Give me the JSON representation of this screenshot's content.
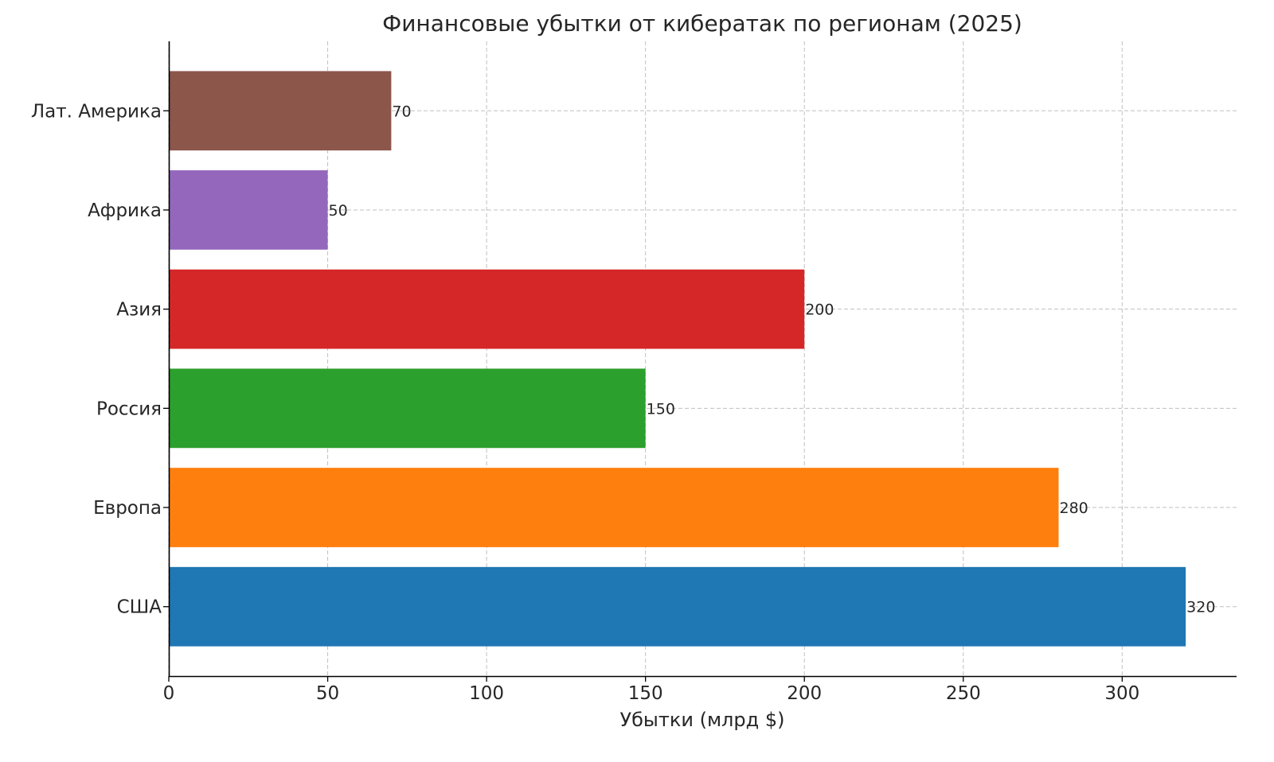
{
  "chart_data": {
    "type": "bar",
    "orientation": "horizontal",
    "title": "Финансовые убытки от кибератак по регионам (2025)",
    "xlabel": "Убытки (млрд $)",
    "ylabel": "",
    "categories": [
      "США",
      "Европа",
      "Россия",
      "Азия",
      "Африка",
      "Лат. Америка"
    ],
    "values": [
      320,
      280,
      150,
      200,
      50,
      70
    ],
    "data_labels": [
      "320",
      "280",
      "150",
      "200",
      "50",
      "70"
    ],
    "colors": [
      "#1f77b4",
      "#ff7f0e",
      "#2ca02c",
      "#d62728",
      "#9467bd",
      "#8c564b"
    ],
    "xlim": [
      0,
      336
    ],
    "xticks": [
      0,
      50,
      100,
      150,
      200,
      250,
      300
    ],
    "xtick_labels": [
      "0",
      "50",
      "100",
      "150",
      "200",
      "250",
      "300"
    ],
    "grid": true,
    "grid_style": "dashed",
    "legend": "none"
  }
}
